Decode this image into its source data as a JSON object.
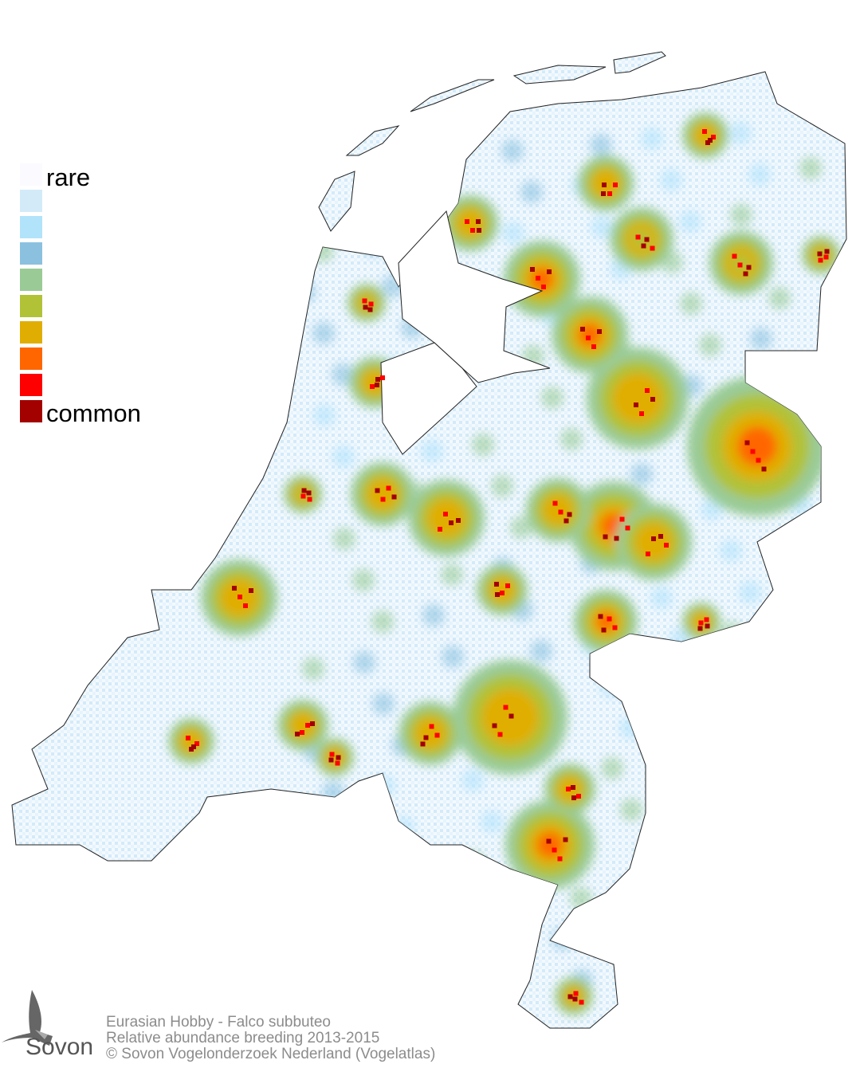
{
  "legend": {
    "rare_label": "rare",
    "common_label": "common",
    "colors": [
      "#fbfbff",
      "#d3ebf9",
      "#b1e3fb",
      "#8bc1df",
      "#9acb96",
      "#b1c237",
      "#e0ae02",
      "#ff6600",
      "#ff0000",
      "#a30000"
    ]
  },
  "footer": {
    "species": "Eurasian Hobby - Falco subbuteo",
    "subtitle": "Relative abundance breeding 2013-2015",
    "copyright": "© Sovon Vogelonderzoek Nederland (Vogelatlas)"
  },
  "logo": {
    "text": "Sovon"
  }
}
